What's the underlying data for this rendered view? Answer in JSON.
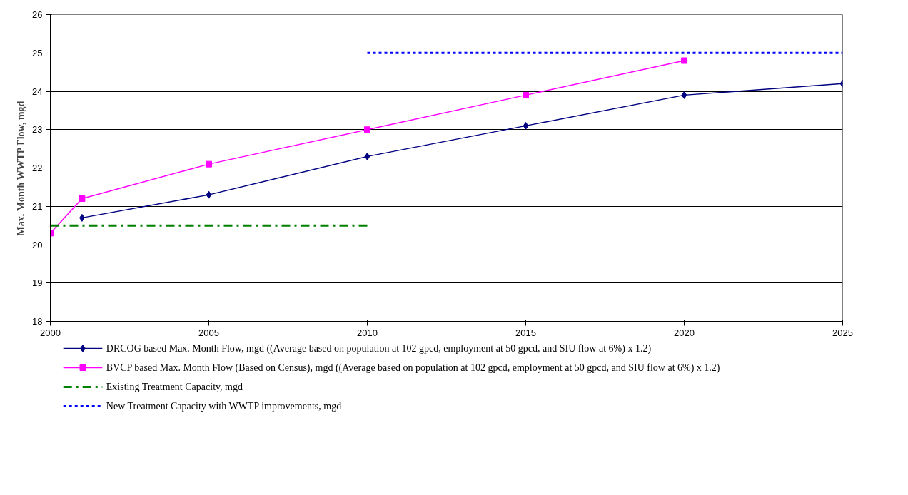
{
  "chart_data": {
    "type": "line",
    "ylabel": "Max. Month WWTP Flow, mgd",
    "xlim": [
      2000,
      2025
    ],
    "xticks": [
      2000,
      2005,
      2010,
      2015,
      2020,
      2025
    ],
    "ylim": [
      18,
      26
    ],
    "yticks": [
      18,
      19,
      20,
      21,
      22,
      23,
      24,
      25,
      26
    ],
    "grid": "y",
    "legend": "bottom",
    "series": [
      {
        "name": "DRCOG based Max. Month Flow, mgd ((Average based on population at 102 gpcd, employment at 50 gpcd, and SIU flow at 6%) x 1.2)",
        "color": "#000080",
        "marker": "diamond",
        "line_style": "solid",
        "x": [
          2001,
          2005,
          2010,
          2015,
          2020,
          2025
        ],
        "values": [
          20.7,
          21.3,
          22.3,
          23.1,
          23.9,
          24.2
        ]
      },
      {
        "name": "BVCP based Max. Month Flow (Based on Census), mgd ((Average based on population at 102 gpcd, employment at 50 gpcd, and SIU flow at 6%) x 1.2)",
        "color": "#ff00ff",
        "marker": "square",
        "line_style": "solid",
        "x": [
          2000,
          2001,
          2005,
          2010,
          2015,
          2020
        ],
        "values": [
          20.3,
          21.2,
          22.1,
          23.0,
          23.9,
          24.8
        ]
      },
      {
        "name": "Existing Treatment Capacity, mgd",
        "color": "#008000",
        "marker": "none",
        "line_style": "dashdot",
        "x": [
          2000,
          2010
        ],
        "values": [
          20.5,
          20.5
        ]
      },
      {
        "name": "New Treatment Capacity with WWTP improvements, mgd",
        "color": "#0000ff",
        "marker": "none",
        "line_style": "dotted",
        "x": [
          2010,
          2025
        ],
        "values": [
          25,
          25
        ]
      }
    ]
  }
}
